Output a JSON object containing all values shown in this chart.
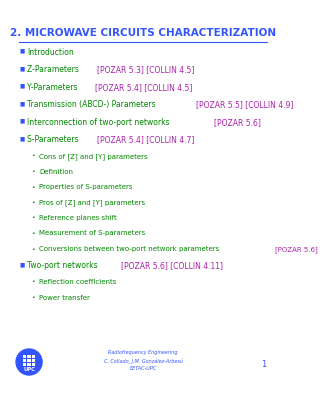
{
  "title_number": "2.",
  "title_text": " MICROWAVE CIRCUITS CHARACTERIZATION",
  "title_color": "#3355ff",
  "separator_color": "#3355ff",
  "background_color": "#ffffff",
  "bullet_color": "#3355ff",
  "green_color": "#008800",
  "purple_color": "#aa22aa",
  "bullet_items": [
    {
      "parts": [
        {
          "t": "Introduction",
          "c": "green"
        }
      ],
      "level": 0
    },
    {
      "parts": [
        {
          "t": "Z-Parameters ",
          "c": "green"
        },
        {
          "t": "[POZAR 5.3] [COLLIN 4.5]",
          "c": "purple"
        }
      ],
      "level": 0
    },
    {
      "parts": [
        {
          "t": "Y-Parameters ",
          "c": "green"
        },
        {
          "t": "[POZAR 5.4] [COLLIN 4.5]",
          "c": "purple"
        }
      ],
      "level": 0
    },
    {
      "parts": [
        {
          "t": "Transmission (ABCD-) Parameters ",
          "c": "green"
        },
        {
          "t": "[POZAR 5.5] [COLLIN 4.9]",
          "c": "purple"
        }
      ],
      "level": 0
    },
    {
      "parts": [
        {
          "t": "Interconnection of two-port networks ",
          "c": "green"
        },
        {
          "t": "[POZAR 5.6]",
          "c": "purple"
        }
      ],
      "level": 0
    },
    {
      "parts": [
        {
          "t": "S-Parameters ",
          "c": "green"
        },
        {
          "t": "[POZAR 5.4] [COLLIN 4.7]",
          "c": "purple"
        }
      ],
      "level": 0
    },
    {
      "parts": [
        {
          "t": "Cons of [Z] and [Y] parameters",
          "c": "green"
        }
      ],
      "level": 1
    },
    {
      "parts": [
        {
          "t": "Definition",
          "c": "green"
        }
      ],
      "level": 1
    },
    {
      "parts": [
        {
          "t": "Properties of S-parameters",
          "c": "green"
        }
      ],
      "level": 1
    },
    {
      "parts": [
        {
          "t": "Pros of [Z] and [Y] parameters",
          "c": "green"
        }
      ],
      "level": 1
    },
    {
      "parts": [
        {
          "t": "Reference planes shift",
          "c": "green"
        }
      ],
      "level": 1
    },
    {
      "parts": [
        {
          "t": "Measurement of S-parameters",
          "c": "green"
        }
      ],
      "level": 1
    },
    {
      "parts": [
        {
          "t": "Conversions between two-port network parameters ",
          "c": "green"
        },
        {
          "t": "[POZAR 5.6]",
          "c": "purple"
        }
      ],
      "level": 1
    },
    {
      "parts": [
        {
          "t": "Two-port networks ",
          "c": "green"
        },
        {
          "t": "[POZAR 5.6] [COLLIN 4.11]",
          "c": "purple"
        }
      ],
      "level": 0
    },
    {
      "parts": [
        {
          "t": "Reflection coefficients",
          "c": "green"
        }
      ],
      "level": 1
    },
    {
      "parts": [
        {
          "t": "Power transfer",
          "c": "green"
        }
      ],
      "level": 1
    }
  ],
  "footer_line1": "Radiofrequency Engineering",
  "footer_line2": "C. Collado, J.M. González-Arbesú",
  "footer_line3": "EETAC-UPC",
  "footer_color": "#3355ff",
  "page_number": "1",
  "page_number_color": "#3355ff",
  "logo_color": "#3355ff"
}
